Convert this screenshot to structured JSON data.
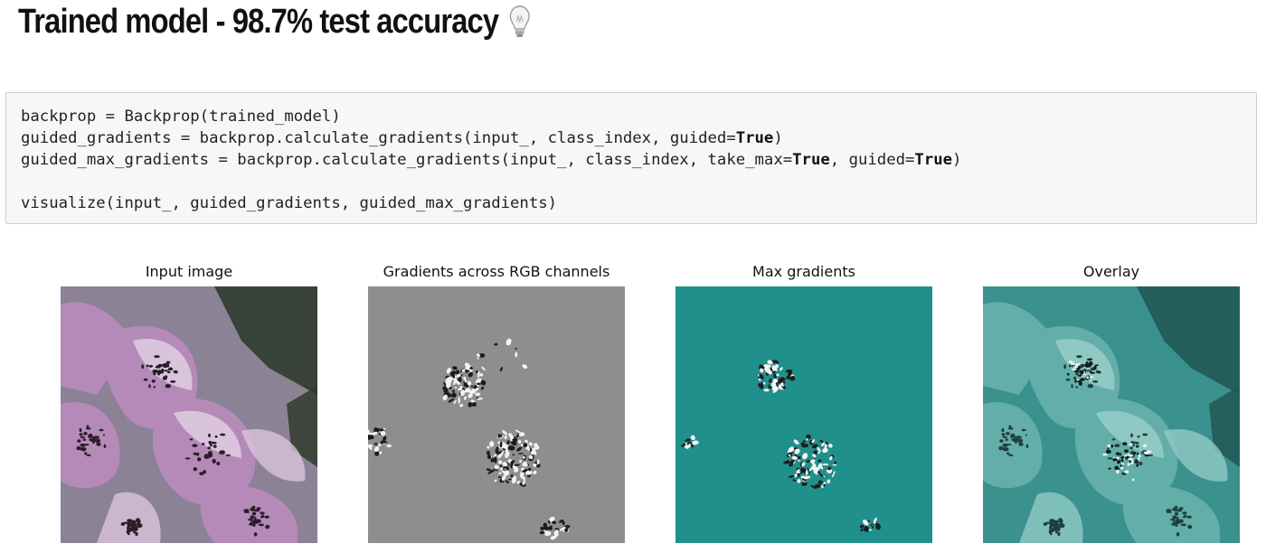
{
  "header": {
    "title": "Trained model - 98.7% test accuracy",
    "icon": "lightbulb-icon"
  },
  "code_cell": {
    "lines": [
      [
        {
          "t": "backprop = Backprop(trained_model)"
        }
      ],
      [
        {
          "t": "guided_gradients = backprop.calculate_gradients(input_, class_index, guided="
        },
        {
          "t": "True",
          "kw": true
        },
        {
          "t": ")"
        }
      ],
      [
        {
          "t": "guided_max_gradients = backprop.calculate_gradients(input_, class_index, take_max="
        },
        {
          "t": "True",
          "kw": true
        },
        {
          "t": ", guided="
        },
        {
          "t": "True",
          "kw": true
        },
        {
          "t": ")"
        }
      ],
      [
        {
          "t": ""
        }
      ],
      [
        {
          "t": "visualize(input_, guided_gradients, guided_max_gradients)"
        }
      ]
    ]
  },
  "figure": {
    "panels": [
      {
        "title": "Input image",
        "kind": "flower"
      },
      {
        "title": "Gradients across RGB channels",
        "kind": "gradients"
      },
      {
        "title": "Max gradients",
        "kind": "max"
      },
      {
        "title": "Overlay",
        "kind": "overlay"
      }
    ],
    "colors": {
      "flower_bg": "#8c8296",
      "petal": "#b58ab9",
      "petal_light": "#d9c4dc",
      "leaf": "#2f3b2e",
      "gradient_bg": "#8e8e8e",
      "max_bg": "#20908c",
      "overlay_bg": "#3e8f8c",
      "overlay_petal": "#6fb3ae"
    }
  }
}
